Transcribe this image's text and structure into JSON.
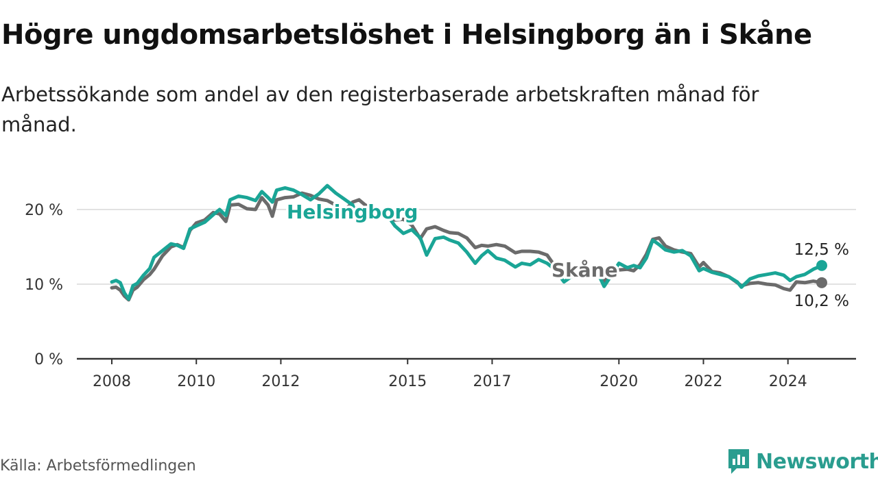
{
  "title": "Högre ungdomsarbetslöshet i Helsingborg än i Skåne",
  "subtitle": "Arbetssökande som andel av den registerbaserade arbetskraften månad för månad.",
  "source": "Källa: Arbetsförmedlingen",
  "brand": {
    "name": "Newsworthy",
    "icon": "newsworthy-logo-icon",
    "color": "#2a9d8f"
  },
  "colors": {
    "helsingborg": "#1aa596",
    "skane": "#6b6b6b",
    "grid": "#d9d9d9",
    "axis": "#333333"
  },
  "chart_data": {
    "type": "line",
    "title": "Högre ungdomsarbetslöshet i Helsingborg än i Skåne",
    "xlabel": "",
    "ylabel": "",
    "xlim": [
      2008.0,
      2024.8
    ],
    "ylim": [
      0,
      25
    ],
    "y_ticks": [
      0,
      10,
      20
    ],
    "y_tick_labels": [
      "0 %",
      "10 %",
      "20 %"
    ],
    "x_ticks": [
      2008,
      2010,
      2012,
      2015,
      2017,
      2020,
      2022,
      2024
    ],
    "x_tick_labels": [
      "2008",
      "2010",
      "2012",
      "2015",
      "2017",
      "2020",
      "2022",
      "2024"
    ],
    "grid": true,
    "series": [
      {
        "name": "Skåne",
        "label": "Skåne",
        "end_label": "10,2 %",
        "points": [
          [
            2008.0,
            9.5
          ],
          [
            2008.1,
            9.6
          ],
          [
            2008.2,
            9.2
          ],
          [
            2008.3,
            8.4
          ],
          [
            2008.4,
            7.9
          ],
          [
            2008.5,
            9.2
          ],
          [
            2008.6,
            9.6
          ],
          [
            2008.75,
            10.6
          ],
          [
            2008.9,
            11.3
          ],
          [
            2009.0,
            12.0
          ],
          [
            2009.2,
            13.8
          ],
          [
            2009.4,
            15.0
          ],
          [
            2009.55,
            15.3
          ],
          [
            2009.7,
            14.9
          ],
          [
            2009.85,
            17.2
          ],
          [
            2010.0,
            18.2
          ],
          [
            2010.2,
            18.6
          ],
          [
            2010.4,
            19.6
          ],
          [
            2010.55,
            19.4
          ],
          [
            2010.7,
            18.4
          ],
          [
            2010.8,
            20.6
          ],
          [
            2011.0,
            20.7
          ],
          [
            2011.2,
            20.1
          ],
          [
            2011.4,
            20.0
          ],
          [
            2011.55,
            21.6
          ],
          [
            2011.7,
            20.6
          ],
          [
            2011.8,
            19.1
          ],
          [
            2011.9,
            21.3
          ],
          [
            2012.1,
            21.6
          ],
          [
            2012.3,
            21.7
          ],
          [
            2012.5,
            22.2
          ],
          [
            2012.7,
            21.9
          ],
          [
            2012.9,
            21.4
          ],
          [
            2013.1,
            21.2
          ],
          [
            2013.3,
            20.6
          ],
          [
            2013.5,
            19.8
          ],
          [
            2013.7,
            21.0
          ],
          [
            2013.85,
            21.3
          ],
          [
            2014.0,
            20.6
          ],
          [
            2014.2,
            20.1
          ],
          [
            2014.4,
            19.2
          ],
          [
            2014.55,
            18.8
          ],
          [
            2014.7,
            18.6
          ],
          [
            2014.9,
            18.7
          ],
          [
            2015.1,
            17.9
          ],
          [
            2015.3,
            16.1
          ],
          [
            2015.45,
            17.4
          ],
          [
            2015.65,
            17.7
          ],
          [
            2015.85,
            17.2
          ],
          [
            2016.0,
            16.9
          ],
          [
            2016.2,
            16.8
          ],
          [
            2016.4,
            16.2
          ],
          [
            2016.6,
            14.9
          ],
          [
            2016.75,
            15.2
          ],
          [
            2016.9,
            15.1
          ],
          [
            2017.1,
            15.3
          ],
          [
            2017.3,
            15.1
          ],
          [
            2017.55,
            14.2
          ],
          [
            2017.7,
            14.4
          ],
          [
            2017.9,
            14.4
          ],
          [
            2018.1,
            14.3
          ],
          [
            2018.3,
            13.9
          ],
          [
            2018.5,
            12.3
          ],
          [
            2018.7,
            11.8
          ],
          [
            2018.9,
            11.5
          ],
          [
            2019.1,
            11.3
          ],
          [
            2019.3,
            11.4
          ],
          [
            2019.5,
            11.3
          ],
          [
            2019.65,
            10.4
          ],
          [
            2019.8,
            11.4
          ],
          [
            2020.0,
            11.9
          ],
          [
            2020.2,
            12.0
          ],
          [
            2020.35,
            11.8
          ],
          [
            2020.5,
            12.6
          ],
          [
            2020.65,
            14.0
          ],
          [
            2020.8,
            16.0
          ],
          [
            2020.95,
            16.2
          ],
          [
            2021.1,
            15.1
          ],
          [
            2021.3,
            14.6
          ],
          [
            2021.5,
            14.3
          ],
          [
            2021.7,
            14.1
          ],
          [
            2021.9,
            12.3
          ],
          [
            2022.0,
            12.9
          ],
          [
            2022.2,
            11.7
          ],
          [
            2022.4,
            11.5
          ],
          [
            2022.6,
            11.0
          ],
          [
            2022.8,
            10.2
          ],
          [
            2022.9,
            9.8
          ],
          [
            2023.1,
            10.1
          ],
          [
            2023.3,
            10.2
          ],
          [
            2023.5,
            10.0
          ],
          [
            2023.7,
            9.9
          ],
          [
            2023.9,
            9.4
          ],
          [
            2024.05,
            9.2
          ],
          [
            2024.2,
            10.3
          ],
          [
            2024.4,
            10.2
          ],
          [
            2024.6,
            10.4
          ],
          [
            2024.8,
            10.2
          ]
        ]
      },
      {
        "name": "Helsingborg",
        "label": "Helsingborg",
        "end_label": "12,5 %",
        "points": [
          [
            2008.0,
            10.3
          ],
          [
            2008.1,
            10.5
          ],
          [
            2008.2,
            10.2
          ],
          [
            2008.3,
            8.8
          ],
          [
            2008.4,
            8.0
          ],
          [
            2008.5,
            9.8
          ],
          [
            2008.6,
            10.1
          ],
          [
            2008.75,
            11.2
          ],
          [
            2008.9,
            12.1
          ],
          [
            2009.0,
            13.6
          ],
          [
            2009.2,
            14.5
          ],
          [
            2009.4,
            15.4
          ],
          [
            2009.55,
            15.2
          ],
          [
            2009.7,
            14.8
          ],
          [
            2009.85,
            17.4
          ],
          [
            2010.0,
            17.8
          ],
          [
            2010.2,
            18.3
          ],
          [
            2010.4,
            19.3
          ],
          [
            2010.55,
            20.0
          ],
          [
            2010.7,
            19.2
          ],
          [
            2010.8,
            21.3
          ],
          [
            2011.0,
            21.8
          ],
          [
            2011.2,
            21.6
          ],
          [
            2011.4,
            21.2
          ],
          [
            2011.55,
            22.4
          ],
          [
            2011.7,
            21.6
          ],
          [
            2011.8,
            21.0
          ],
          [
            2011.9,
            22.6
          ],
          [
            2012.1,
            22.9
          ],
          [
            2012.3,
            22.6
          ],
          [
            2012.5,
            22.0
          ],
          [
            2012.7,
            21.3
          ],
          [
            2012.9,
            22.1
          ],
          [
            2013.1,
            23.2
          ],
          [
            2013.3,
            22.2
          ],
          [
            2013.5,
            21.4
          ],
          [
            2013.7,
            20.6
          ],
          [
            2013.85,
            18.3
          ],
          [
            2014.0,
            20.2
          ],
          [
            2014.2,
            20.0
          ],
          [
            2014.4,
            19.8
          ],
          [
            2014.55,
            19.0
          ],
          [
            2014.7,
            17.8
          ],
          [
            2014.9,
            16.8
          ],
          [
            2015.1,
            17.3
          ],
          [
            2015.3,
            16.2
          ],
          [
            2015.45,
            13.9
          ],
          [
            2015.65,
            16.1
          ],
          [
            2015.85,
            16.3
          ],
          [
            2016.0,
            15.9
          ],
          [
            2016.2,
            15.5
          ],
          [
            2016.4,
            14.3
          ],
          [
            2016.6,
            12.8
          ],
          [
            2016.75,
            13.8
          ],
          [
            2016.9,
            14.5
          ],
          [
            2017.1,
            13.5
          ],
          [
            2017.3,
            13.2
          ],
          [
            2017.55,
            12.3
          ],
          [
            2017.7,
            12.8
          ],
          [
            2017.9,
            12.6
          ],
          [
            2018.1,
            13.3
          ],
          [
            2018.3,
            12.8
          ],
          [
            2018.5,
            11.9
          ],
          [
            2018.7,
            10.3
          ],
          [
            2018.9,
            11.1
          ],
          [
            2019.1,
            11.2
          ],
          [
            2019.3,
            11.1
          ],
          [
            2019.5,
            11.5
          ],
          [
            2019.65,
            9.7
          ],
          [
            2019.8,
            11.0
          ],
          [
            2020.0,
            12.8
          ],
          [
            2020.2,
            12.2
          ],
          [
            2020.35,
            12.5
          ],
          [
            2020.5,
            12.2
          ],
          [
            2020.65,
            13.5
          ],
          [
            2020.8,
            15.9
          ],
          [
            2020.95,
            15.3
          ],
          [
            2021.1,
            14.6
          ],
          [
            2021.3,
            14.3
          ],
          [
            2021.5,
            14.5
          ],
          [
            2021.7,
            13.8
          ],
          [
            2021.9,
            11.8
          ],
          [
            2022.0,
            12.1
          ],
          [
            2022.2,
            11.6
          ],
          [
            2022.4,
            11.3
          ],
          [
            2022.6,
            11.0
          ],
          [
            2022.8,
            10.3
          ],
          [
            2022.9,
            9.6
          ],
          [
            2023.1,
            10.7
          ],
          [
            2023.3,
            11.1
          ],
          [
            2023.5,
            11.3
          ],
          [
            2023.7,
            11.5
          ],
          [
            2023.9,
            11.2
          ],
          [
            2024.05,
            10.5
          ],
          [
            2024.2,
            11.0
          ],
          [
            2024.4,
            11.3
          ],
          [
            2024.6,
            12.0
          ],
          [
            2024.8,
            12.5
          ]
        ]
      }
    ]
  }
}
